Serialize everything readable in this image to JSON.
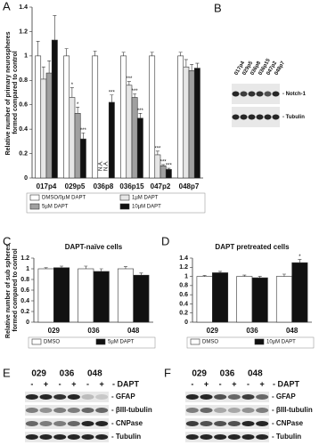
{
  "chart_data": [
    {
      "type": "bar",
      "panel": "A",
      "ylabel": "Relative number of primary neurospheres formed compared to control",
      "categories": [
        "017p4",
        "029p5",
        "036p8",
        "036p15",
        "047p2",
        "048p7"
      ],
      "series": [
        {
          "name": "DMSO/0µM DAPT",
          "color": "#ffffff",
          "values": [
            1.0,
            1.0,
            1.0,
            1.0,
            1.0,
            1.0
          ],
          "errors": [
            0.12,
            0.06,
            0.04,
            0.03,
            0.03,
            0.03
          ],
          "annotations": [
            null,
            null,
            null,
            null,
            null,
            null
          ]
        },
        {
          "name": "1µM DAPT",
          "color": "#e6e6e6",
          "values": [
            0.81,
            0.66,
            null,
            0.76,
            0.19,
            0.91
          ],
          "errors": [
            0.1,
            0.08,
            null,
            0.03,
            0.03,
            0.06
          ],
          "annotations": [
            null,
            "*",
            "N.A.",
            "***",
            "***",
            null
          ]
        },
        {
          "name": "5µM DAPT",
          "color": "#a0a0a0",
          "values": [
            0.86,
            0.53,
            null,
            0.66,
            0.1,
            0.88
          ],
          "errors": [
            0.1,
            0.05,
            null,
            0.03,
            0.01,
            0.05
          ],
          "annotations": [
            null,
            "*",
            "N.A.",
            "***",
            "***",
            null
          ]
        },
        {
          "name": "10µM DAPT",
          "color": "#111111",
          "values": [
            1.13,
            0.32,
            0.62,
            0.49,
            0.07,
            0.9
          ],
          "errors": [
            0.2,
            0.05,
            0.06,
            0.04,
            0.01,
            0.04
          ],
          "annotations": [
            null,
            "***",
            "***",
            "***",
            "***",
            null
          ]
        }
      ],
      "ylim": [
        0,
        1.4
      ],
      "yticks": [
        0,
        0.2,
        0.4,
        0.6,
        0.8,
        1,
        1.2,
        1.4
      ],
      "legend": "bottom"
    },
    {
      "type": "bar",
      "panel": "C",
      "title": "DAPT-naïve cells",
      "ylabel": "Relative number of sub spheres formed compared to control",
      "categories": [
        "029",
        "036",
        "048"
      ],
      "series": [
        {
          "name": "DMSO",
          "color": "#ffffff",
          "values": [
            1.0,
            1.0,
            1.0
          ],
          "errors": [
            0.02,
            0.05,
            0.04
          ],
          "annotations": [
            null,
            null,
            null
          ]
        },
        {
          "name": "5µM DAPT",
          "color": "#111111",
          "values": [
            1.02,
            0.95,
            0.88
          ],
          "errors": [
            0.03,
            0.05,
            0.04
          ],
          "annotations": [
            null,
            null,
            null
          ]
        }
      ],
      "ylim": [
        0,
        1.2
      ],
      "yticks": [
        0,
        0.2,
        0.4,
        0.6,
        0.8,
        1,
        1.2
      ],
      "legend": "bottom"
    },
    {
      "type": "bar",
      "panel": "D",
      "title": "DAPT pretreated cells",
      "categories": [
        "029",
        "036",
        "048"
      ],
      "series": [
        {
          "name": "DMSO",
          "color": "#ffffff",
          "values": [
            1.0,
            1.0,
            1.0
          ],
          "errors": [
            0.02,
            0.03,
            0.05
          ],
          "annotations": [
            null,
            null,
            null
          ]
        },
        {
          "name": "10µM DAPT",
          "color": "#111111",
          "values": [
            1.08,
            0.97,
            1.3
          ],
          "errors": [
            0.03,
            0.03,
            0.07
          ],
          "annotations": [
            null,
            null,
            "*"
          ]
        }
      ],
      "ylim": [
        0,
        1.4
      ],
      "yticks": [
        0,
        0.2,
        0.4,
        0.6,
        0.8,
        1,
        1.2,
        1.4
      ],
      "legend": "bottom"
    }
  ],
  "blots": [
    {
      "panel": "B",
      "lanes": [
        "017p4",
        "029p5",
        "036p8",
        "036p15",
        "047p2",
        "048p7"
      ],
      "rows": [
        "- Notch-1",
        "- Tubulin"
      ]
    },
    {
      "panel": "E",
      "groups": [
        "029",
        "036",
        "048"
      ],
      "lanes": [
        "-",
        "+",
        "-",
        "+",
        "-",
        "+"
      ],
      "treatment": "- DAPT",
      "rows": [
        "- GFAP",
        "- βIII-tubulin",
        "- CNPase",
        "- Tubulin"
      ]
    },
    {
      "panel": "F",
      "groups": [
        "029",
        "036",
        "048"
      ],
      "lanes": [
        "-",
        "+",
        "-",
        "+",
        "-",
        "+"
      ],
      "treatment": "- DAPT",
      "rows": [
        "- GFAP",
        "- βIII-tubulin",
        "- CNPase",
        "- Tubulin"
      ]
    }
  ]
}
